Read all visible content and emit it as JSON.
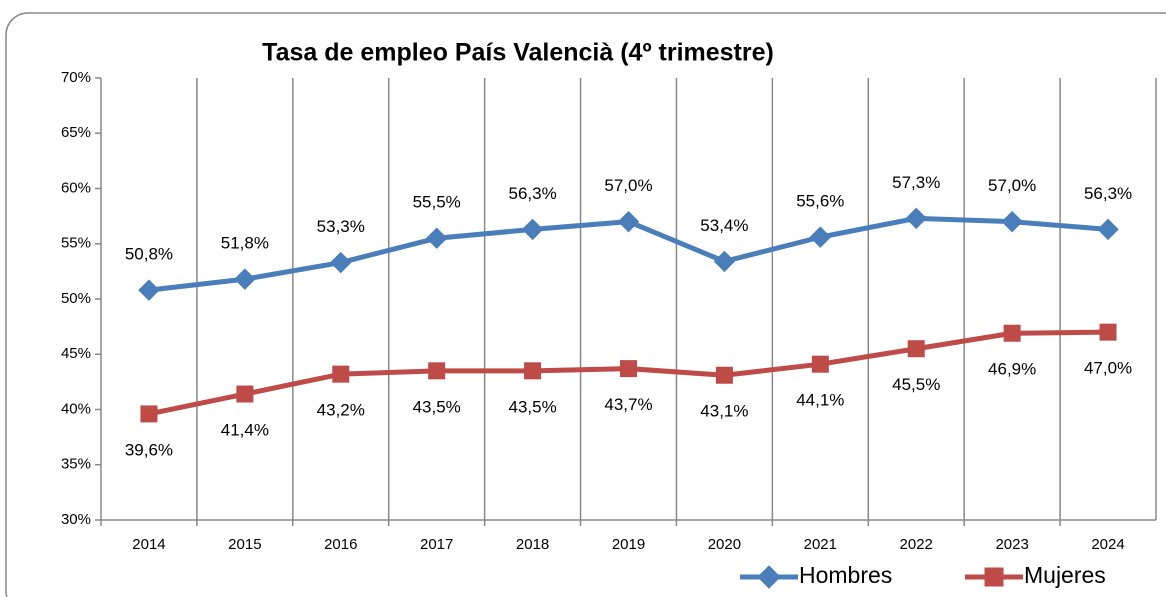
{
  "chart_data": {
    "type": "line",
    "title": "Tasa de empleo País Valencià (4º trimestre)",
    "categories": [
      "2014",
      "2015",
      "2016",
      "2017",
      "2018",
      "2019",
      "2020",
      "2021",
      "2022",
      "2023",
      "2024"
    ],
    "series": [
      {
        "name": "Hombres",
        "color": "#4a7ebb",
        "marker": "diamond",
        "values": [
          50.8,
          51.8,
          53.3,
          55.5,
          56.3,
          57.0,
          53.4,
          55.6,
          57.3,
          57.0,
          56.3
        ],
        "value_labels": [
          "50,8%",
          "51,8%",
          "53,3%",
          "55,5%",
          "56,3%",
          "57,0%",
          "53,4%",
          "55,6%",
          "57,3%",
          "57,0%",
          "56,3%"
        ]
      },
      {
        "name": "Mujeres",
        "color": "#be4b48",
        "marker": "square",
        "values": [
          39.6,
          41.4,
          43.2,
          43.5,
          43.5,
          43.7,
          43.1,
          44.1,
          45.5,
          46.9,
          47.0
        ],
        "value_labels": [
          "39,6%",
          "41,4%",
          "43,2%",
          "43,5%",
          "43,5%",
          "43,7%",
          "43,1%",
          "44,1%",
          "45,5%",
          "46,9%",
          "47,0%"
        ]
      }
    ],
    "ylim": [
      30,
      70
    ],
    "yticks": [
      {
        "value": 30,
        "label": "30%"
      },
      {
        "value": 35,
        "label": "35%"
      },
      {
        "value": 40,
        "label": "40%"
      },
      {
        "value": 45,
        "label": "45%"
      },
      {
        "value": 50,
        "label": "50%"
      },
      {
        "value": 55,
        "label": "55%"
      },
      {
        "value": 60,
        "label": "60%"
      },
      {
        "value": 65,
        "label": "65%"
      },
      {
        "value": 70,
        "label": "70%"
      }
    ],
    "grid": "vertical",
    "legend": "bottom-right"
  }
}
